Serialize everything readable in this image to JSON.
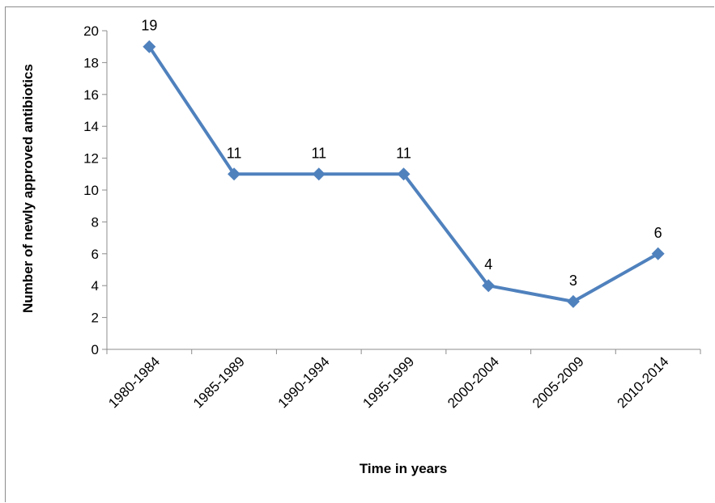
{
  "chart_data": {
    "type": "line",
    "title": "",
    "xlabel": "Time in years",
    "ylabel": "Number of newly approved antibiotics",
    "categories": [
      "1980-1984",
      "1985-1989",
      "1990-1994",
      "1995-1999",
      "2000-2004",
      "2005-2009",
      "2010-2014"
    ],
    "series": [
      {
        "values": [
          19,
          11,
          11,
          11,
          4,
          3,
          6
        ]
      }
    ],
    "data_labels": [
      "19",
      "11",
      "11",
      "11",
      "4",
      "3",
      "6"
    ],
    "ylim": [
      0,
      20
    ],
    "yticks": [
      0,
      2,
      4,
      6,
      8,
      10,
      12,
      14,
      16,
      18,
      20
    ],
    "grid": false,
    "legend": "none",
    "colors": {
      "line": "#4f81bd",
      "marker": "#4f81bd",
      "axis": "#8c8c8c"
    }
  }
}
